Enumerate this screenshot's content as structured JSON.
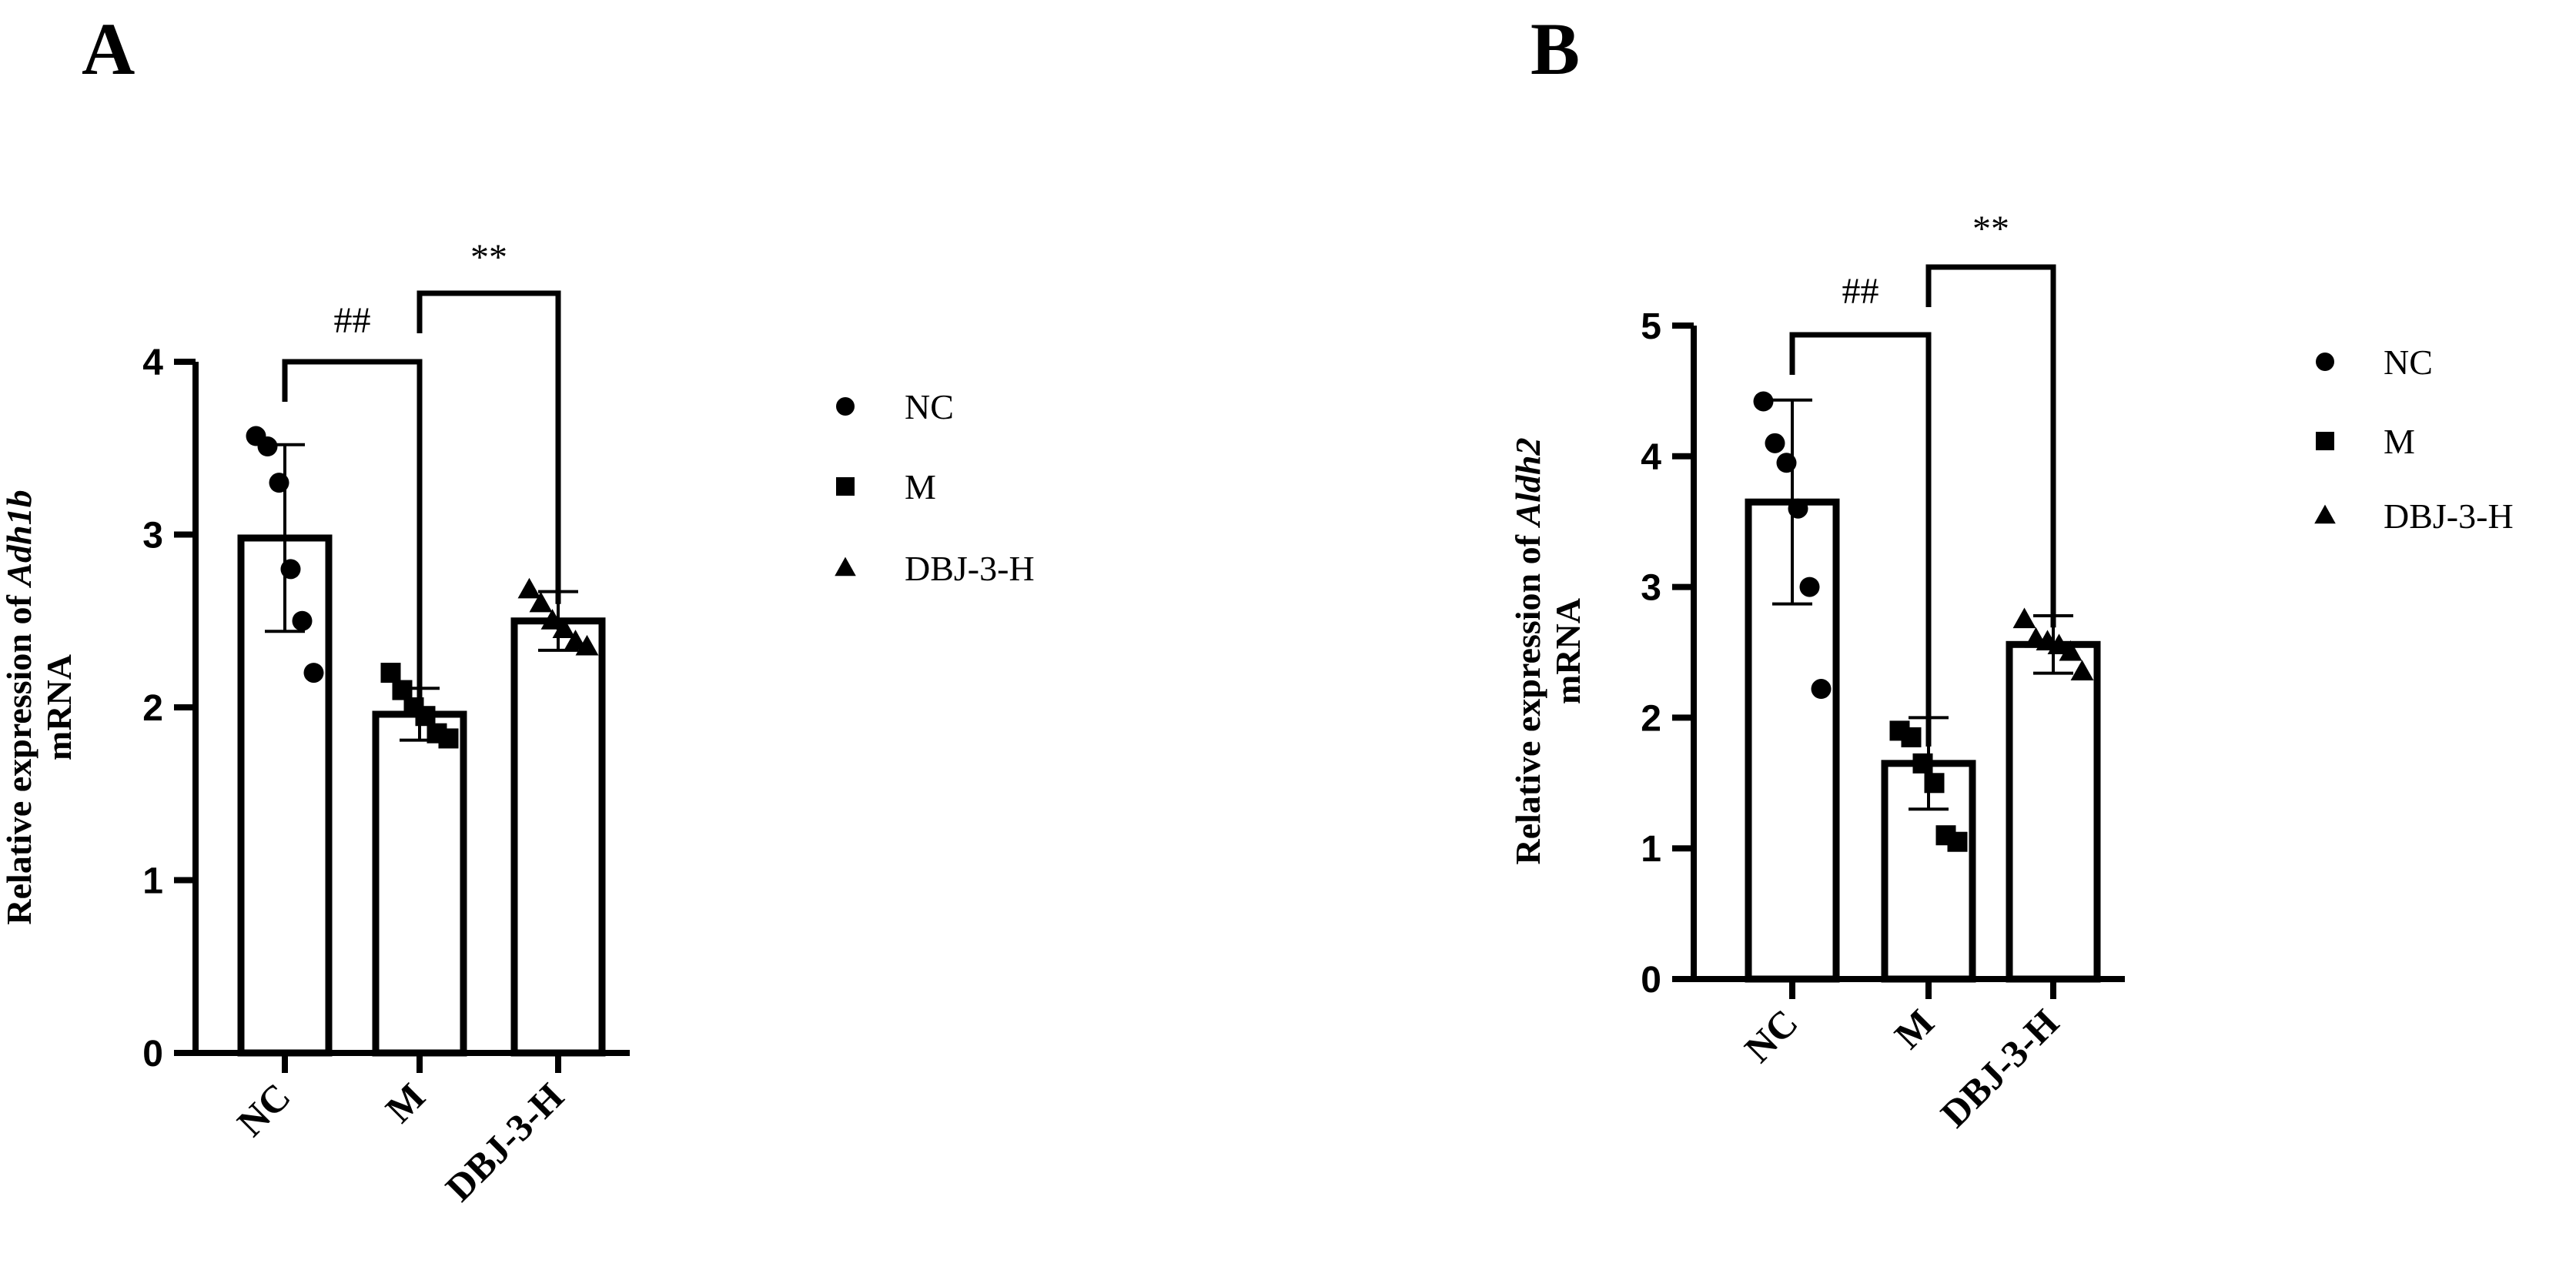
{
  "chart_data": [
    {
      "type": "bar",
      "panel": "A",
      "categories": [
        "NC",
        "M",
        "DBJ-3-H"
      ],
      "ylabel_prefix": "Relative expression of ",
      "ylabel_gene": "Adh1b",
      "ylabel_suffix": "mRNA",
      "ylim": [
        0,
        4
      ],
      "yticks": [
        "0",
        "1",
        "2",
        "3",
        "4"
      ],
      "means": [
        2.98,
        1.96,
        2.5
      ],
      "sd": [
        0.54,
        0.15,
        0.17
      ],
      "points": [
        [
          3.57,
          3.51,
          3.3,
          2.8,
          2.5,
          2.2
        ],
        [
          2.2,
          2.1,
          2.0,
          1.95,
          1.85,
          1.82
        ],
        [
          2.68,
          2.6,
          2.5,
          2.45,
          2.38,
          2.35
        ]
      ],
      "markers": [
        "circle",
        "square",
        "triangle"
      ],
      "comparisons": [
        {
          "from": 0,
          "to": 1,
          "label": "##"
        },
        {
          "from": 1,
          "to": 2,
          "label": "**"
        }
      ],
      "legend": [
        "NC",
        "M",
        "DBJ-3-H"
      ]
    },
    {
      "type": "bar",
      "panel": "B",
      "categories": [
        "NC",
        "M",
        "DBJ-3-H"
      ],
      "ylabel_prefix": "Relative expression of ",
      "ylabel_gene": "Aldh2",
      "ylabel_suffix": "mRNA",
      "ylim": [
        0,
        5
      ],
      "yticks": [
        "0",
        "1",
        "2",
        "3",
        "4",
        "5"
      ],
      "means": [
        3.65,
        1.65,
        2.56
      ],
      "sd": [
        0.78,
        0.35,
        0.22
      ],
      "points": [
        [
          4.42,
          4.1,
          3.95,
          3.6,
          3.0,
          2.22
        ],
        [
          1.9,
          1.85,
          1.65,
          1.5,
          1.1,
          1.05
        ],
        [
          2.75,
          2.6,
          2.58,
          2.55,
          2.5,
          2.35
        ]
      ],
      "markers": [
        "circle",
        "square",
        "triangle"
      ],
      "comparisons": [
        {
          "from": 0,
          "to": 1,
          "label": "##"
        },
        {
          "from": 1,
          "to": 2,
          "label": "**"
        }
      ],
      "legend": [
        "NC",
        "M",
        "DBJ-3-H"
      ]
    }
  ]
}
